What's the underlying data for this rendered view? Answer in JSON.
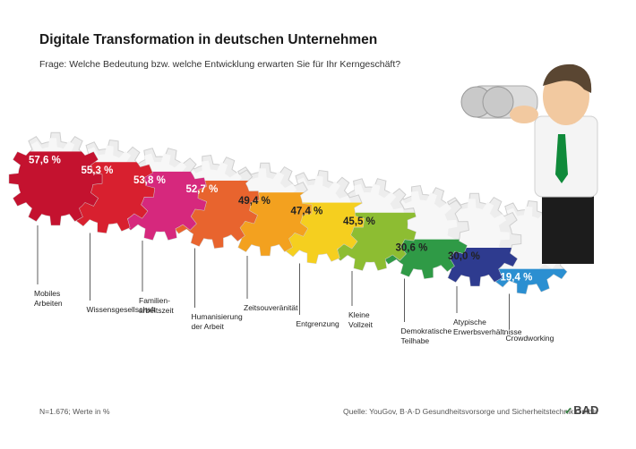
{
  "header": {
    "title": "Digitale Transformation in deutschen Unternehmen",
    "subtitle": "Frage: Welche Bedeutung bzw. welche Entwicklung erwarten Sie für Ihr Kerngeschäft?"
  },
  "footer": {
    "note": "N=1.676; Werte in %",
    "source": "Quelle: YouGov, B·A·D Gesundheitsvorsorge und Sicherheitstechnik GmbH",
    "logo_text": "BAD"
  },
  "chart_data": {
    "type": "bar",
    "categories": [
      "Mobiles Arbeiten",
      "Wissensgesellschaft",
      "Familienarbeitszeit",
      "Humanisierung der Arbeit",
      "Zeitsouveränität",
      "Entgrenzung",
      "Kleine Vollzeit",
      "Demokratische Teilhabe",
      "Atypische Erwerbsverhältnisse",
      "Crowdworking"
    ],
    "category_lines": [
      [
        "Mobiles",
        "Arbeiten"
      ],
      [
        "Wissensgesellschaft"
      ],
      [
        "Familien-",
        "arbeitszeit"
      ],
      [
        "Humanisierung",
        "der Arbeit"
      ],
      [
        "Zeitsouveränität"
      ],
      [
        "Entgrenzung"
      ],
      [
        "Kleine",
        "Vollzeit"
      ],
      [
        "Demokratische",
        "Teilhabe"
      ],
      [
        "Atypische",
        "Erwerbsverhältnisse"
      ],
      [
        "Crowdworking"
      ]
    ],
    "values": [
      57.6,
      55.3,
      53.8,
      52.7,
      49.4,
      47.4,
      45.5,
      30.6,
      30.0,
      19.4
    ],
    "value_labels": [
      "57,6 %",
      "55,3 %",
      "53,8 %",
      "52,7 %",
      "49,4 %",
      "47,4 %",
      "45,5 %",
      "30,6 %",
      "30,0 %",
      "19,4 %"
    ],
    "colors": [
      "#c4122f",
      "#d8202f",
      "#d6287d",
      "#e8642e",
      "#f3a11f",
      "#f5cf1f",
      "#8dbd32",
      "#2f9a46",
      "#2e3b8f",
      "#2b8fd1"
    ]
  }
}
